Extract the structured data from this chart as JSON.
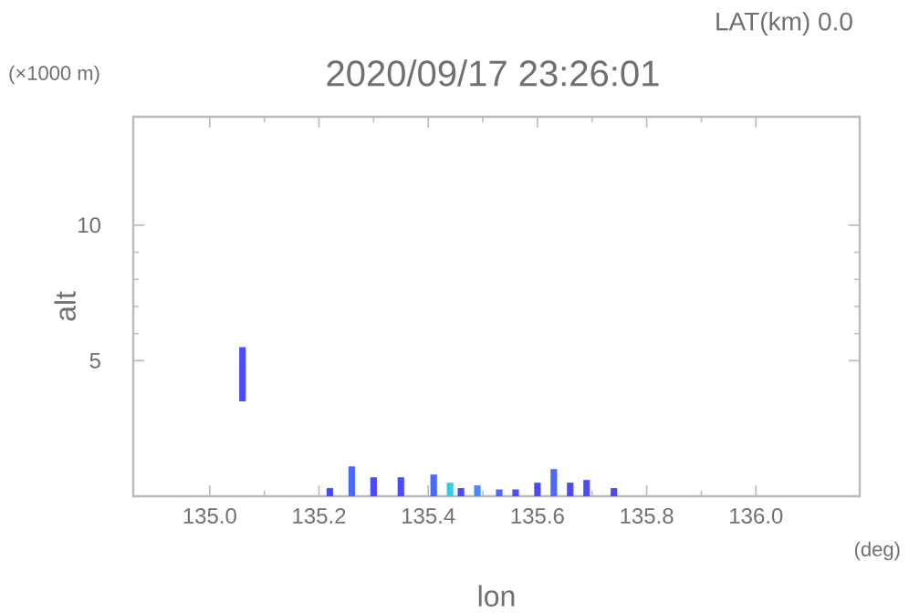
{
  "chart_data": {
    "type": "bar",
    "title": "2020/09/17 23:26:01",
    "subtitle": "LAT(km) 0.0",
    "xlabel": "lon",
    "ylabel": "alt",
    "annotations": [
      "(×1000 m)",
      "(deg)"
    ],
    "x": [
      135.06,
      135.22,
      135.26,
      135.3,
      135.35,
      135.41,
      135.44,
      135.46,
      135.49,
      135.53,
      135.56,
      135.6,
      135.63,
      135.66,
      135.69,
      135.74
    ],
    "base": [
      3.5,
      0,
      0,
      0,
      0,
      0,
      0,
      0,
      0,
      0,
      0,
      0,
      0,
      0,
      0,
      0
    ],
    "values": [
      2.0,
      0.3,
      1.1,
      0.7,
      0.7,
      0.8,
      0.5,
      0.3,
      0.4,
      0.25,
      0.25,
      0.5,
      1.0,
      0.5,
      0.6,
      0.3
    ],
    "colors": [
      "#4a4aff",
      "#4a4aff",
      "#4a6aff",
      "#4a4aff",
      "#4a4aff",
      "#4a6aff",
      "#33ccee",
      "#4a4aff",
      "#4a8aff",
      "#4a6aff",
      "#4a4aff",
      "#4a4aff",
      "#4a6aff",
      "#4a4aff",
      "#4a4aff",
      "#4a4aff"
    ],
    "xlim": [
      134.86,
      136.19
    ],
    "ylim": [
      0,
      14
    ],
    "xticks": [
      {
        "value": 135.0,
        "label": "135.0"
      },
      {
        "value": 135.2,
        "label": "135.2"
      },
      {
        "value": 135.4,
        "label": "135.4"
      },
      {
        "value": 135.6,
        "label": "135.6"
      },
      {
        "value": 135.8,
        "label": "135.8"
      },
      {
        "value": 136.0,
        "label": "136.0"
      }
    ],
    "yticks": [
      5,
      10
    ]
  }
}
